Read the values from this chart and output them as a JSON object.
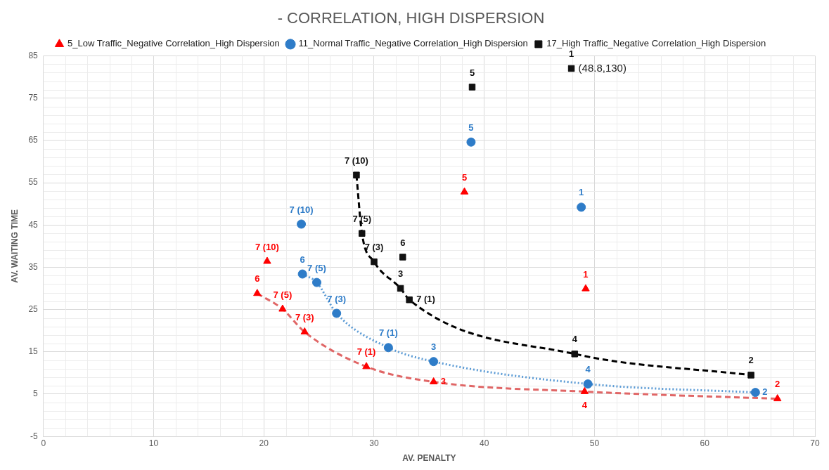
{
  "chart_data": {
    "type": "scatter",
    "title": "- CORRELATION, HIGH DISPERSION",
    "xlabel": "AV. PENALTY",
    "ylabel": "AV. WAITING TIME",
    "xlim": [
      0,
      70
    ],
    "xticks": [
      0,
      10,
      20,
      30,
      40,
      50,
      60,
      70
    ],
    "ylim": [
      -5,
      85
    ],
    "yticks": [
      -5,
      5,
      15,
      25,
      35,
      45,
      55,
      65,
      75,
      85
    ],
    "grid": true,
    "legend": "top",
    "series": [
      {
        "name": "5_Low Traffic_Negative Correlation_High Dispersion",
        "color": "#ff0000",
        "marker": "triangle",
        "x": [
          49.2,
          66.6,
          35.4,
          49.1,
          38.2,
          19.4,
          20.3,
          21.7,
          23.7,
          29.3
        ],
        "values": [
          29.9,
          3.9,
          7.9,
          5.6,
          52.8,
          28.8,
          36.4,
          25.1,
          19.7,
          11.5
        ]
      },
      {
        "name": "11_Normal Traffic_Negative Correlation_High Dispersion",
        "color": "#2e7cc8",
        "marker": "circle",
        "x": [
          48.8,
          64.6,
          35.4,
          49.4,
          38.8,
          23.5,
          23.4,
          24.8,
          26.6,
          31.3
        ],
        "values": [
          49.2,
          5.4,
          12.7,
          7.4,
          64.6,
          33.4,
          45.2,
          31.4,
          24.1,
          16.0
        ]
      },
      {
        "name": "17_High Traffic_Negative Correlation_High Dispersion",
        "color": "#111111",
        "marker": "square",
        "x": [
          47.9,
          64.2,
          32.4,
          48.2,
          38.9,
          32.6,
          28.4,
          28.9,
          30.0,
          33.2
        ],
        "values": [
          82.0,
          9.5,
          30.0,
          14.5,
          77.6,
          37.4,
          56.8,
          43.0,
          36.3,
          27.3
        ]
      },
      {
        "type": "line",
        "color": "#e06666",
        "line_style": "dashed",
        "x": [
          19.4,
          21.7,
          23.7,
          29.3,
          35.4,
          49.1,
          66.6
        ],
        "values": [
          28.8,
          25.1,
          19.7,
          11.5,
          7.9,
          5.6,
          3.9
        ]
      },
      {
        "type": "line",
        "color": "#5b9bd5",
        "line_style": "dotted",
        "x": [
          23.5,
          24.8,
          26.6,
          31.3,
          35.4,
          49.4,
          64.6
        ],
        "values": [
          33.4,
          31.4,
          24.1,
          16.0,
          12.7,
          7.4,
          5.4
        ]
      },
      {
        "type": "line",
        "color": "#000000",
        "line_style": "dashed",
        "x": [
          28.4,
          28.9,
          30.0,
          32.4,
          33.2,
          48.2,
          64.2
        ],
        "values": [
          56.8,
          43.0,
          36.3,
          30.0,
          27.3,
          14.5,
          9.5
        ]
      }
    ],
    "annotations": [
      {
        "text": "1",
        "x": 49.2,
        "y": 29.9
      },
      {
        "text": "2",
        "x": 66.6,
        "y": 3.9
      },
      {
        "text": "3",
        "x": 35.4,
        "y": 7.9
      },
      {
        "text": "4",
        "x": 49.1,
        "y": 5.6
      },
      {
        "text": "5",
        "x": 38.2,
        "y": 52.8
      },
      {
        "text": "6",
        "x": 19.4,
        "y": 28.8
      },
      {
        "text": "7 (10)",
        "x": 20.3,
        "y": 36.4
      },
      {
        "text": "7 (5)",
        "x": 21.7,
        "y": 25.1
      },
      {
        "text": "7 (3)",
        "x": 23.7,
        "y": 19.7
      },
      {
        "text": "7 (1)",
        "x": 29.3,
        "y": 11.5
      },
      {
        "text": "1",
        "x": 48.8,
        "y": 49.2
      },
      {
        "text": "2",
        "x": 64.6,
        "y": 5.4
      },
      {
        "text": "3",
        "x": 35.4,
        "y": 12.7
      },
      {
        "text": "4",
        "x": 49.4,
        "y": 7.4
      },
      {
        "text": "5",
        "x": 38.8,
        "y": 64.6
      },
      {
        "text": "6",
        "x": 23.5,
        "y": 33.4
      },
      {
        "text": "7 (10)",
        "x": 23.4,
        "y": 45.2
      },
      {
        "text": "7 (5)",
        "x": 24.8,
        "y": 31.4
      },
      {
        "text": "7 (3)",
        "x": 26.6,
        "y": 24.1
      },
      {
        "text": "7 (1)",
        "x": 31.3,
        "y": 16.0
      },
      {
        "text": "1",
        "x": 47.9,
        "y": 82.0
      },
      {
        "text": "(48.8,130)",
        "x": 47.9,
        "y": 82.0
      },
      {
        "text": "2",
        "x": 64.2,
        "y": 9.5
      },
      {
        "text": "3",
        "x": 32.4,
        "y": 30.0
      },
      {
        "text": "4",
        "x": 48.2,
        "y": 14.5
      },
      {
        "text": "5",
        "x": 38.9,
        "y": 77.6
      },
      {
        "text": "6",
        "x": 32.6,
        "y": 37.4
      },
      {
        "text": "7 (10)",
        "x": 28.4,
        "y": 56.8
      },
      {
        "text": "7 (5)",
        "x": 28.9,
        "y": 43.0
      },
      {
        "text": "7 (3)",
        "x": 30.0,
        "y": 36.3
      },
      {
        "text": "7 (1)",
        "x": 33.2,
        "y": 27.3
      }
    ]
  }
}
